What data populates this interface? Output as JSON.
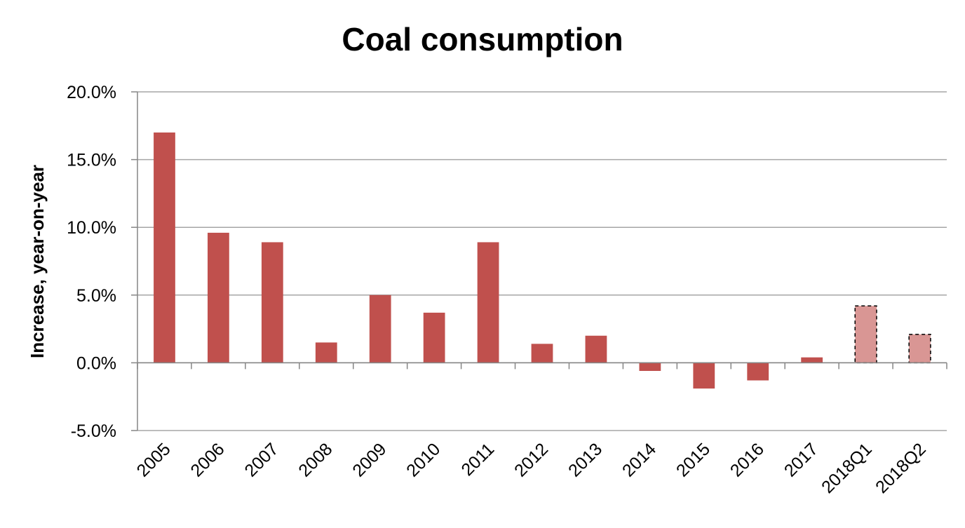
{
  "chart_data": {
    "type": "bar",
    "title": "Coal consumption",
    "xlabel": "",
    "ylabel": "Increase, year-on-year",
    "ylim": [
      -5.0,
      20.0
    ],
    "yticks": [
      "-5.0%",
      "0.0%",
      "5.0%",
      "10.0%",
      "15.0%",
      "20.0%"
    ],
    "ytick_values": [
      -5.0,
      0.0,
      5.0,
      10.0,
      15.0,
      20.0
    ],
    "categories": [
      "2005",
      "2006",
      "2007",
      "2008",
      "2009",
      "2010",
      "2011",
      "2012",
      "2013",
      "2014",
      "2015",
      "2016",
      "2017",
      "2018Q1",
      "2018Q2"
    ],
    "values": [
      17.0,
      9.6,
      8.9,
      1.5,
      5.0,
      3.7,
      8.9,
      1.4,
      2.0,
      -0.6,
      -1.9,
      -1.3,
      0.4,
      4.2,
      2.1
    ],
    "estimated": [
      false,
      false,
      false,
      false,
      false,
      false,
      false,
      false,
      false,
      false,
      false,
      false,
      false,
      true,
      true
    ],
    "grid": true,
    "legend": "none",
    "colors": {
      "bar": "#c0504d",
      "bar_estimated": "#d99694",
      "grid": "#a6a6a6",
      "axis": "#868686"
    }
  }
}
